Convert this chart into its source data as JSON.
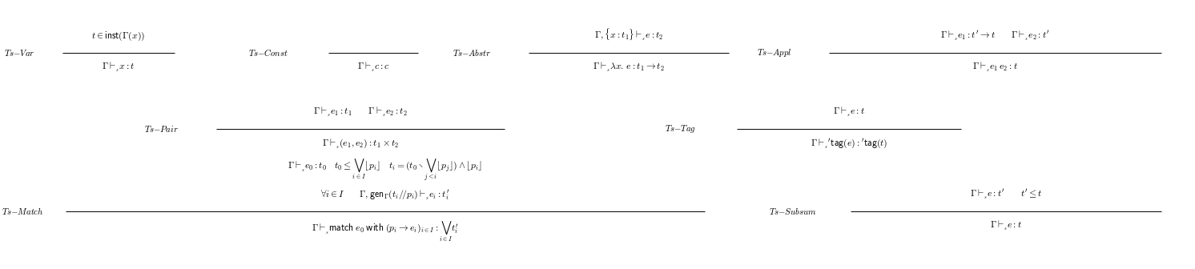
{
  "background": "#ffffff",
  "figsize": [
    14.92,
    3.36
  ],
  "dpi": 100,
  "name_fontsize": 7.8,
  "formula_fontsize": 8.5
}
